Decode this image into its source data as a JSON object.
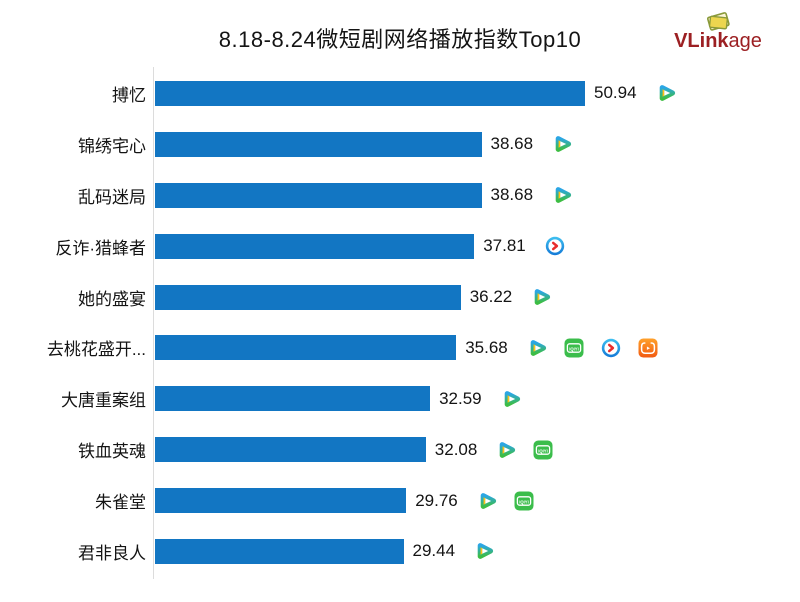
{
  "title": "8.18-8.24微短剧网络播放指数Top10",
  "logo": {
    "text_bold": "VLink",
    "text_light": "age"
  },
  "chart_data": {
    "type": "bar",
    "orientation": "horizontal",
    "title": "8.18-8.24微短剧网络播放指数Top10",
    "categories": [
      "搏忆",
      "锦绣宅心",
      "乱码迷局",
      "反诈·猎蜂者",
      "她的盛宴",
      "去桃花盛开...",
      "大唐重案组",
      "铁血英魂",
      "朱雀堂",
      "君非良人"
    ],
    "values": [
      50.94,
      38.68,
      38.68,
      37.81,
      36.22,
      35.68,
      32.59,
      32.08,
      29.76,
      29.44
    ],
    "value_labels": [
      "50.94",
      "38.68",
      "38.68",
      "37.81",
      "36.22",
      "35.68",
      "32.59",
      "32.08",
      "29.76",
      "29.44"
    ],
    "platforms": [
      [
        "tencent-video"
      ],
      [
        "tencent-video"
      ],
      [
        "tencent-video"
      ],
      [
        "youku"
      ],
      [
        "tencent-video"
      ],
      [
        "tencent-video",
        "iqiyi",
        "youku",
        "mango-tv"
      ],
      [
        "tencent-video"
      ],
      [
        "tencent-video",
        "iqiyi"
      ],
      [
        "tencent-video",
        "iqiyi"
      ],
      [
        "tencent-video"
      ]
    ],
    "xlim": [
      0,
      52
    ],
    "grid": false,
    "legend": false,
    "bar_color": "#1276c3",
    "axis_line_color": "#dcdcdc",
    "text_color": "#141414",
    "platform_icon_colors": {
      "tencent-video": {
        "top": "#2ba6e5",
        "bottom": "#3dbd43",
        "accent": "#ffc115",
        "inner": "#ffffff"
      },
      "iqiyi": {
        "bg": "#3bbd4b",
        "fg": "#ffffff",
        "label": "iQIYI"
      },
      "youku": {
        "ring_top": "#3fc0f0",
        "ring_bottom": "#1479d7",
        "inner": "#ffffff",
        "arrow": "#e82c2c"
      },
      "mango-tv": {
        "top": "#ffa12b",
        "bottom": "#f25a12",
        "fg": "#ffffff"
      }
    },
    "logo_colors": {
      "text": "#9c2023",
      "icon_yellow": "#ecd64f",
      "icon_border": "#8a9a3a",
      "icon_pale": "#fdf6d8"
    }
  }
}
